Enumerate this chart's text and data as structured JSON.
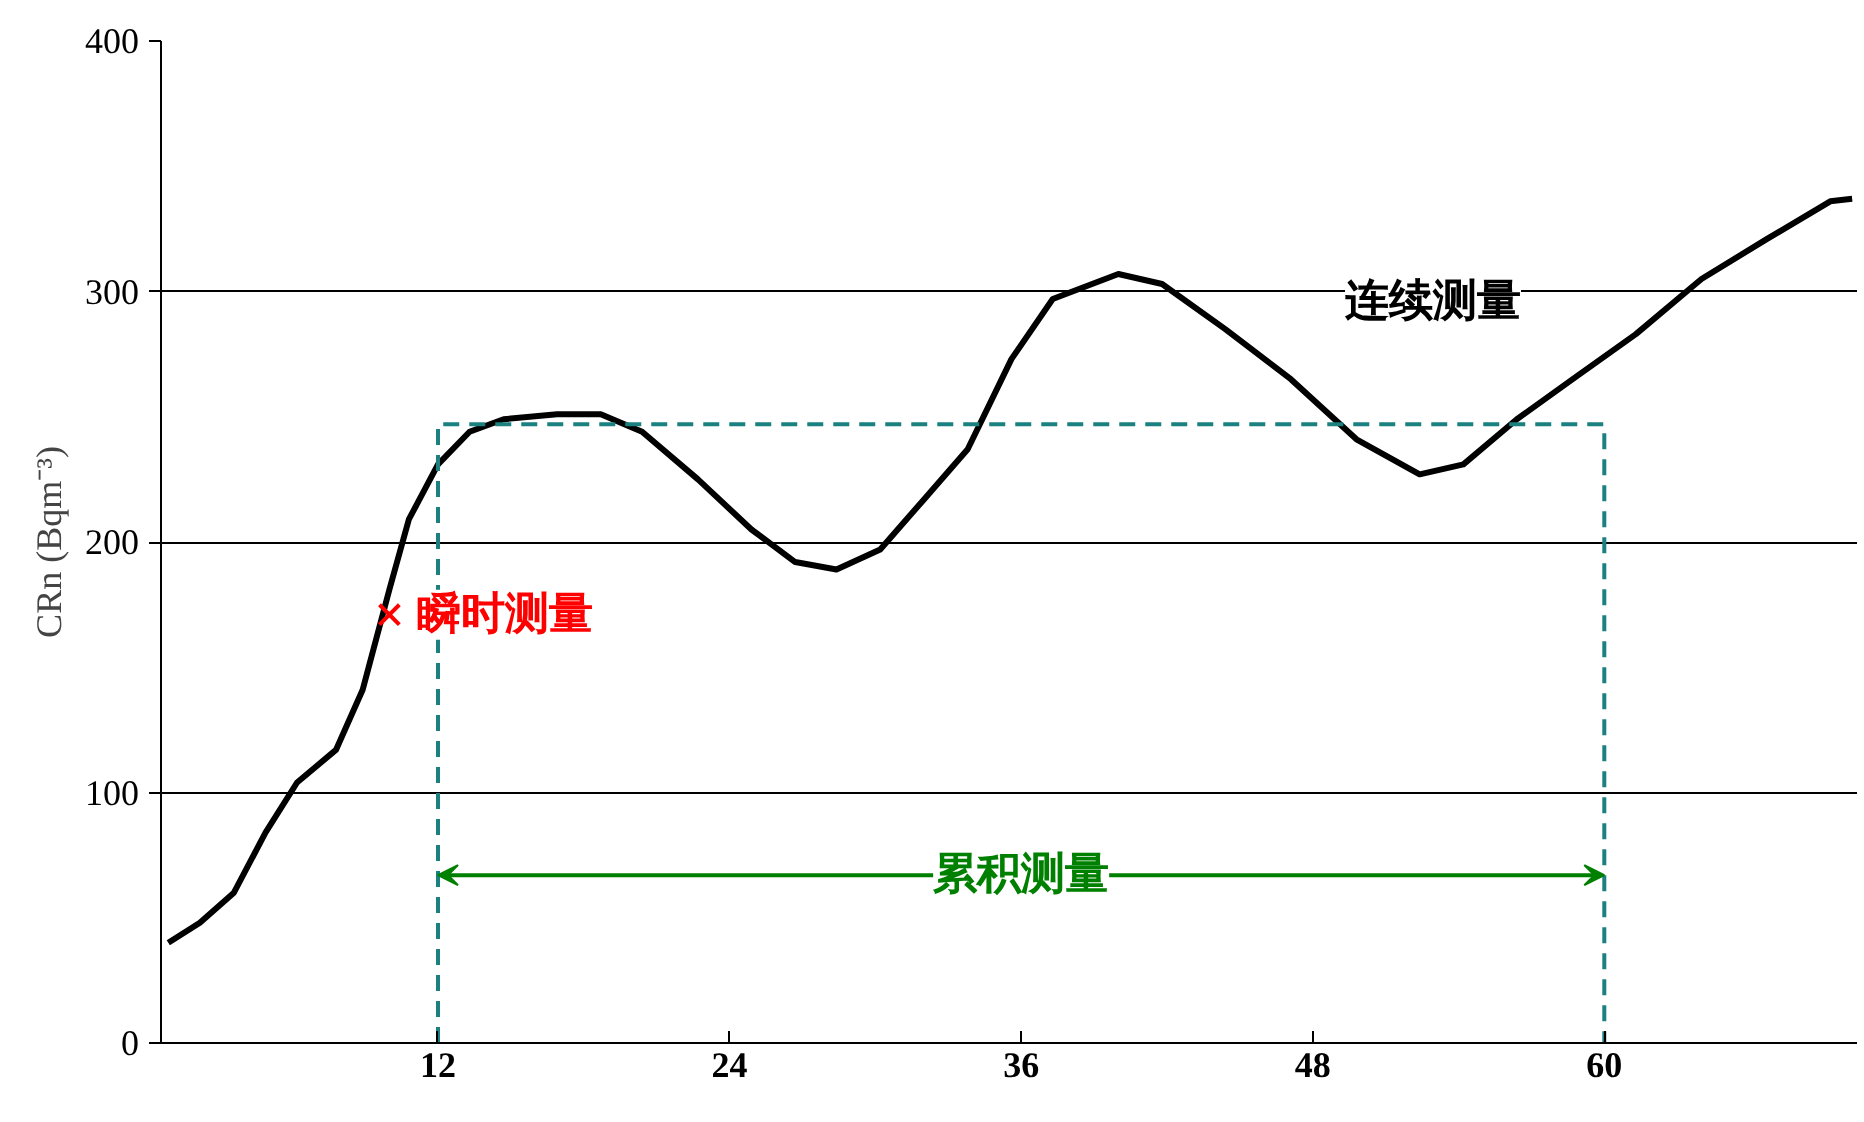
{
  "chart_data": {
    "type": "line",
    "ylabel": "CRn (Bqm⁻³)",
    "xlim": [
      0.6,
      70.4
    ],
    "ylim": [
      0,
      400
    ],
    "xticks": [
      12,
      24,
      36,
      48,
      60
    ],
    "yticks": [
      0,
      100,
      200,
      300,
      400
    ],
    "grid": "y",
    "series": [
      {
        "color": "#000000",
        "x": [
          0.9,
          2.2,
          3.6,
          4.9,
          6.2,
          7.8,
          8.9,
          10,
          10.8,
          12,
          13.3,
          14.7,
          16.9,
          18.7,
          20.4,
          22.7,
          24.9,
          26.7,
          28.4,
          30.2,
          32,
          33.8,
          35.6,
          37.3,
          40,
          41.8,
          44.4,
          47.1,
          49.8,
          52.4,
          54.2,
          56.4,
          58.7,
          61.3,
          64,
          66.7,
          69.3,
          70.2
        ],
        "values": [
          40,
          48,
          60,
          84,
          104,
          117,
          141,
          181,
          209,
          231,
          244,
          249,
          251,
          251,
          244,
          225,
          205,
          192,
          189,
          197,
          217,
          237,
          273,
          297,
          307,
          303,
          285,
          265,
          241,
          227,
          231,
          249,
          265,
          283,
          305,
          321,
          336,
          337
        ]
      },
      {
        "type": "scatter",
        "marker": "cross",
        "color": "#ff0000",
        "x": [
          10
        ],
        "values": [
          171
        ]
      },
      {
        "type": "line",
        "line_style": "dashed",
        "color": "#1a8080",
        "x": [
          12,
          12,
          60,
          60
        ],
        "values": [
          0,
          247,
          247,
          0
        ]
      }
    ],
    "annotations": [
      "连续测量",
      "瞬时测量",
      {
        "text": "累积测量",
        "x": 12,
        "y": 67
      }
    ]
  }
}
